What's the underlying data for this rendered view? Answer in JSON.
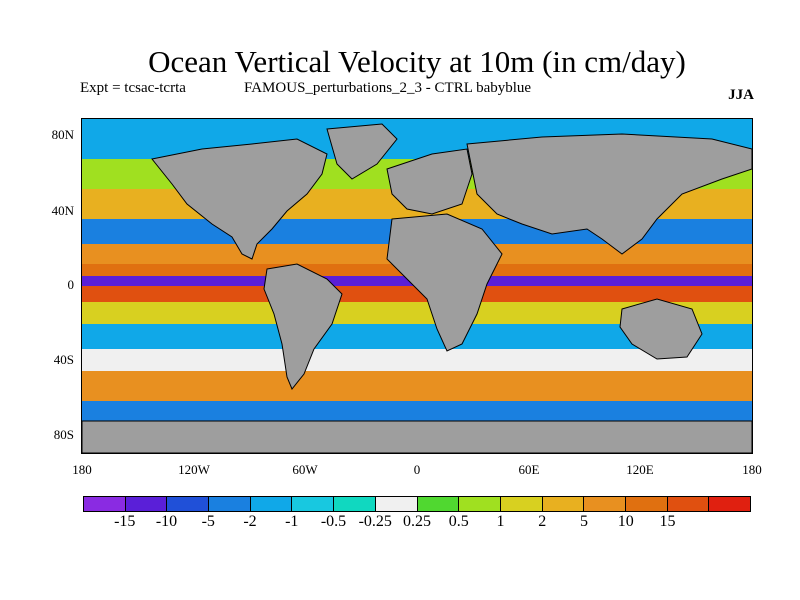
{
  "header": {
    "title": "Ocean Vertical Velocity at 10m (in cm/day)",
    "expt": "Expt = tcsac-tcrta",
    "run": "FAMOUS_perturbations_2_3 - CTRL babyblue",
    "season": "JJA"
  },
  "axes": {
    "y_labels": [
      "80N",
      "40N",
      "0",
      "40S",
      "80S"
    ],
    "x_labels": [
      "180",
      "120W",
      "60W",
      "0",
      "60E",
      "120E",
      "180"
    ]
  },
  "colorbar": {
    "colors": [
      "#8a2be2",
      "#5a1fd8",
      "#2050d8",
      "#1a80e0",
      "#10a8e8",
      "#18c8e0",
      "#10d8c0",
      "#f0f0f0",
      "#50d830",
      "#a0e020",
      "#d8d020",
      "#e8b020",
      "#e89020",
      "#e07010",
      "#e05010",
      "#e02010"
    ],
    "labels": [
      "-15",
      "-10",
      "-5",
      "-2",
      "-1",
      "-0.5",
      "-0.25",
      "0.25",
      "0.5",
      "1",
      "2",
      "5",
      "10",
      "15"
    ]
  },
  "map": {
    "land_color": "#9e9e9e",
    "ocean_bands": [
      "#10a8e8",
      "#a0e020",
      "#e8b020",
      "#e07010",
      "#5a1fd8",
      "#e05010",
      "#d8d020",
      "#1a80e0",
      "#f0f0f0",
      "#e89020"
    ]
  }
}
